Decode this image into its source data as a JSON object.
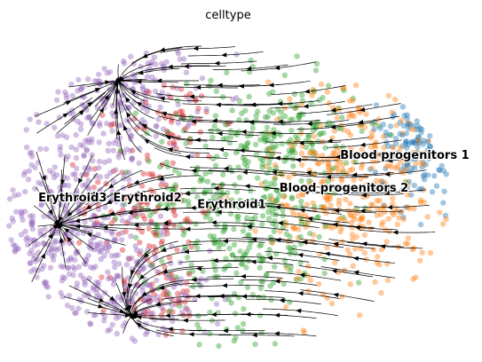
{
  "chart_data": {
    "type": "scatter",
    "title": "celltype",
    "xlabel": "",
    "ylabel": "",
    "axes_visible": false,
    "grid": false,
    "legend": "on data",
    "overlay": "velocity streamlines (black, with arrowheads)",
    "categories": [
      {
        "name": "Erythroid3",
        "color": "#9467bd",
        "label_pos": [
          0.14,
          0.47
        ]
      },
      {
        "name": "Erythroid2",
        "color": "#d62728",
        "label_pos": [
          0.3,
          0.47
        ]
      },
      {
        "name": "Erythroid1",
        "color": "#2ca02c",
        "label_pos": [
          0.48,
          0.45
        ]
      },
      {
        "name": "Blood progenitors 2",
        "color": "#ff7f0e",
        "label_pos": [
          0.72,
          0.5
        ]
      },
      {
        "name": "Blood progenitors 1",
        "color": "#1f77b4",
        "label_pos": [
          0.85,
          0.6
        ]
      }
    ]
  }
}
